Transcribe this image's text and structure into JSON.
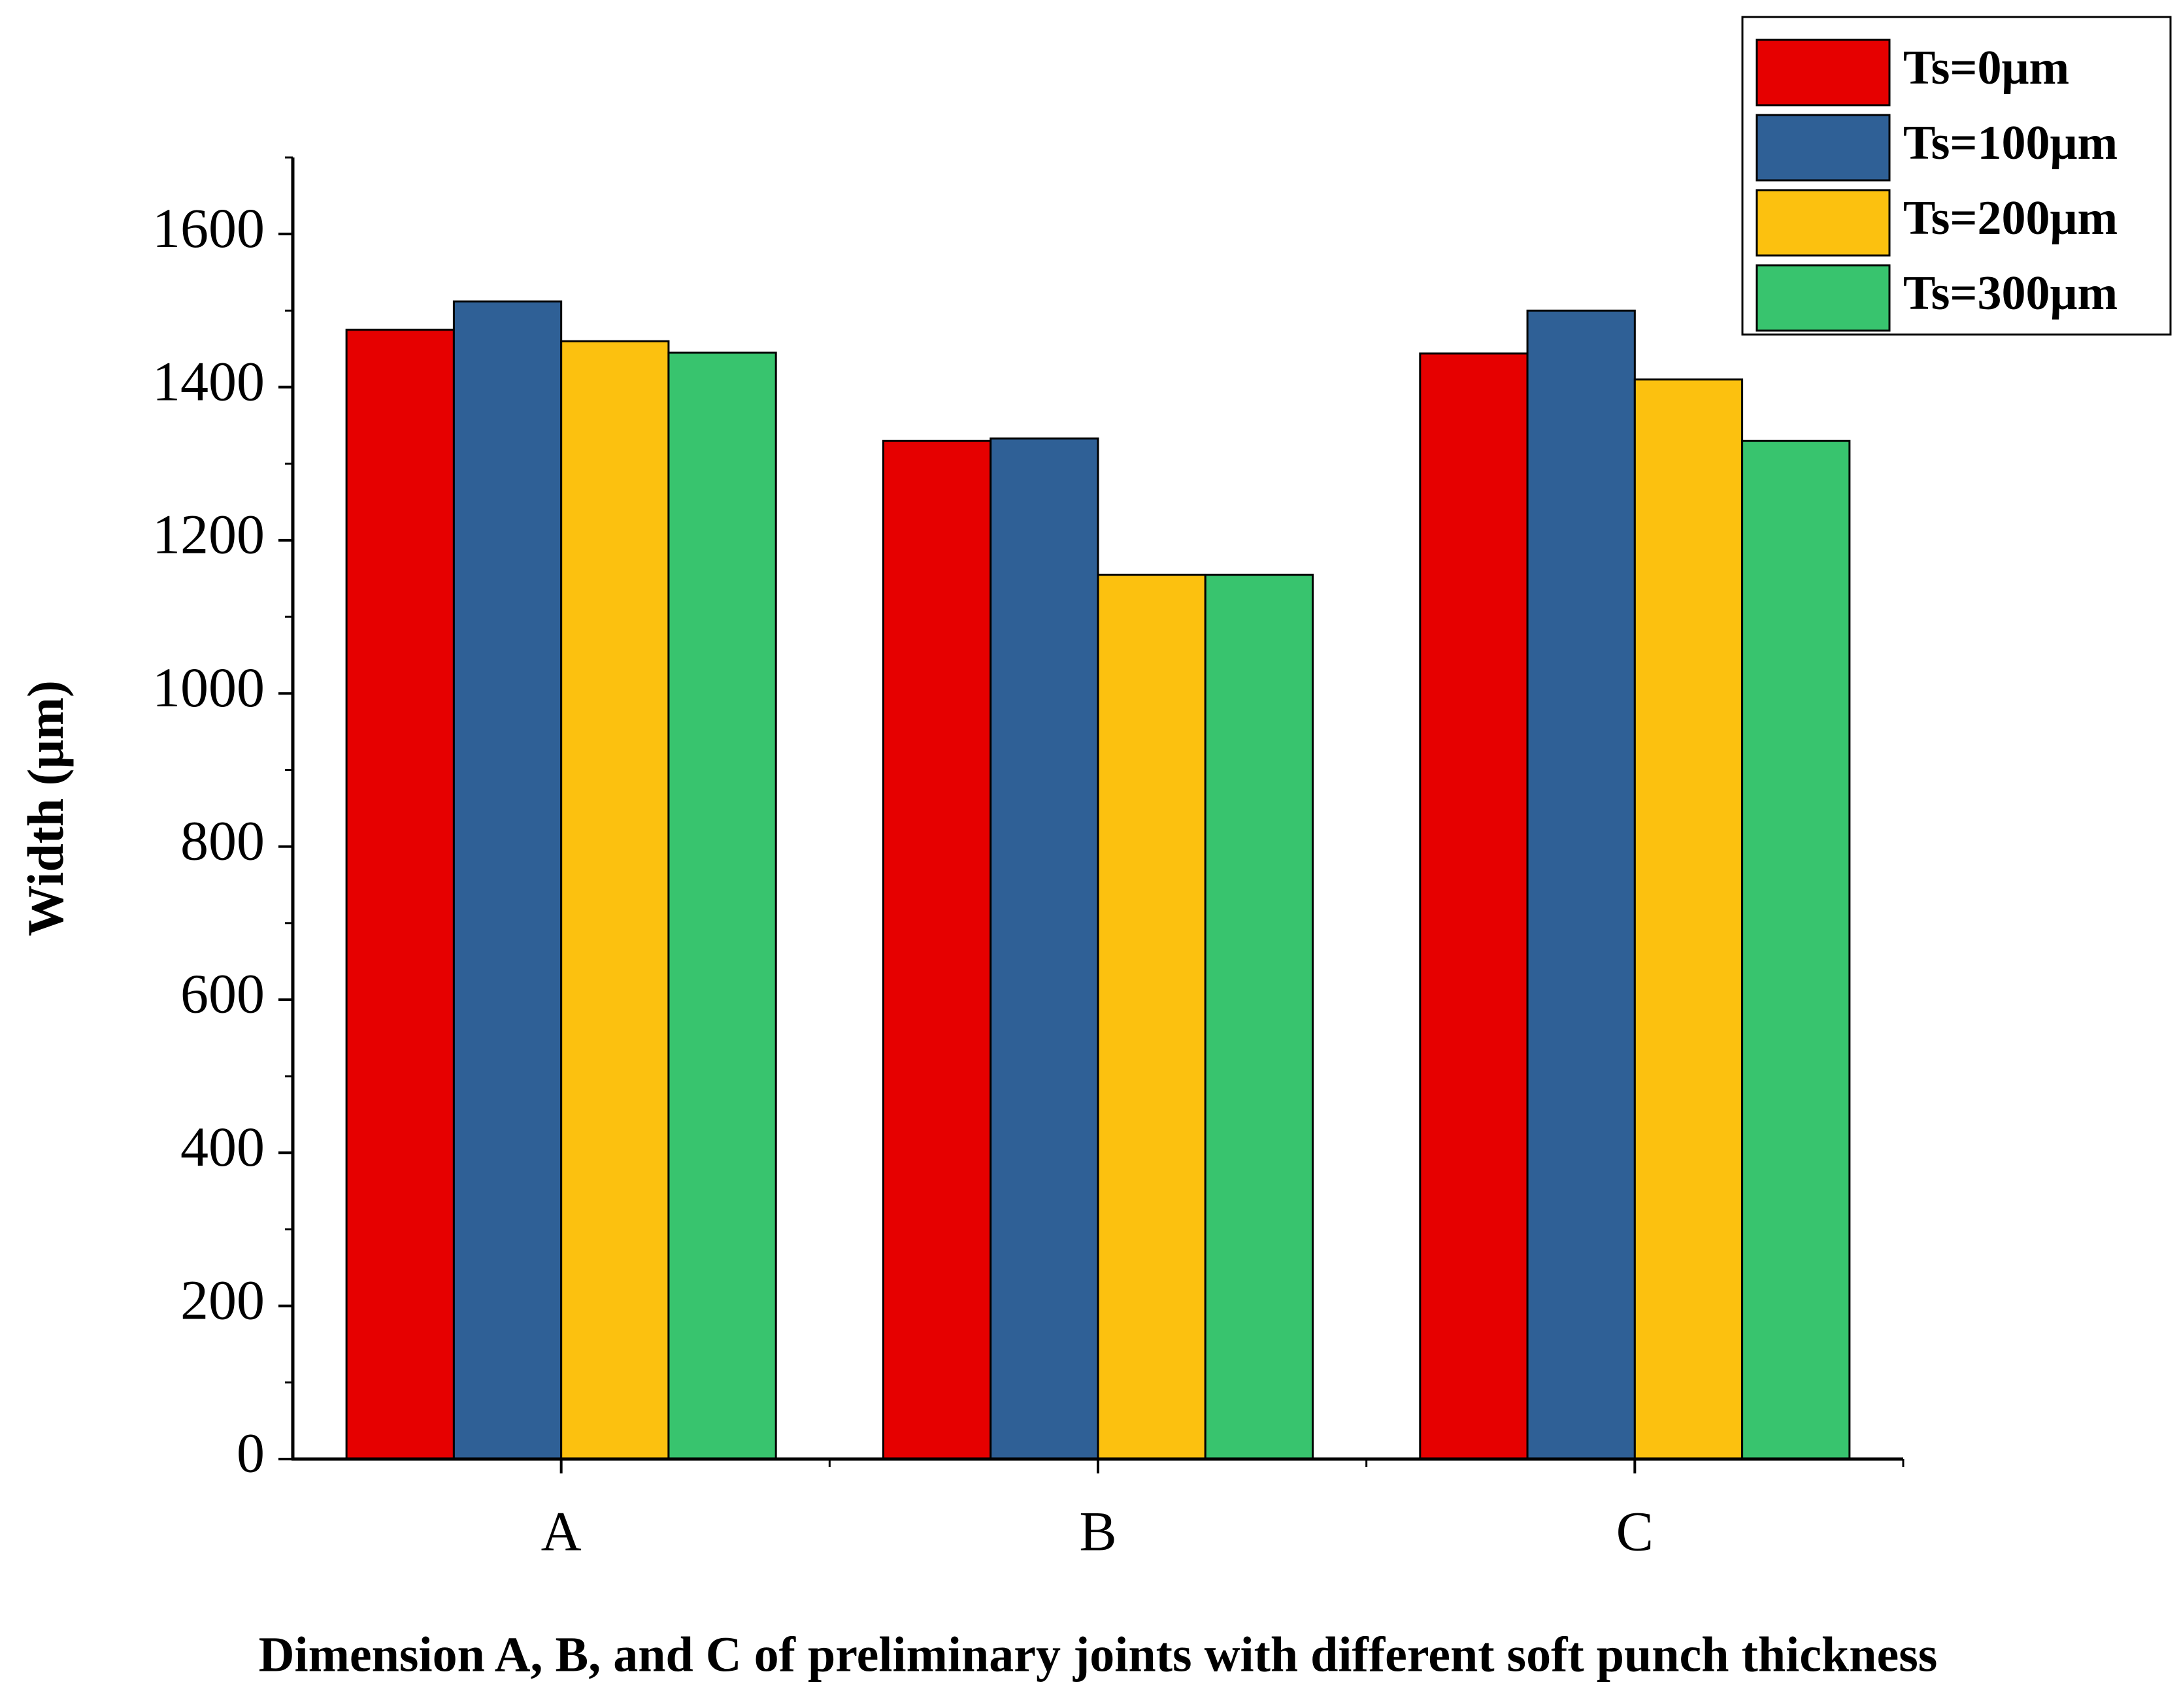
{
  "chart_data": {
    "type": "bar",
    "xlabel": "Dimension A, B, and C  of preliminary joints with different soft punch thickness",
    "ylabel": "Width (μm)",
    "categories": [
      "A",
      "B",
      "C"
    ],
    "series": [
      {
        "name": "Ts=0μm",
        "color": "#e60000",
        "values": [
          1475,
          1330,
          1444
        ]
      },
      {
        "name": "Ts=100μm",
        "color": "#2f6096",
        "values": [
          1512,
          1333,
          1500
        ]
      },
      {
        "name": "Ts=200μm",
        "color": "#fcc10f",
        "values": [
          1460,
          1155,
          1410
        ]
      },
      {
        "name": "Ts=300μm",
        "color": "#38c46e",
        "values": [
          1445,
          1155,
          1330
        ]
      }
    ],
    "ylim": [
      0,
      1700
    ],
    "yticks": [
      0,
      200,
      400,
      600,
      800,
      1000,
      1200,
      1400,
      1600
    ],
    "grid": false,
    "legend": "top-right"
  }
}
